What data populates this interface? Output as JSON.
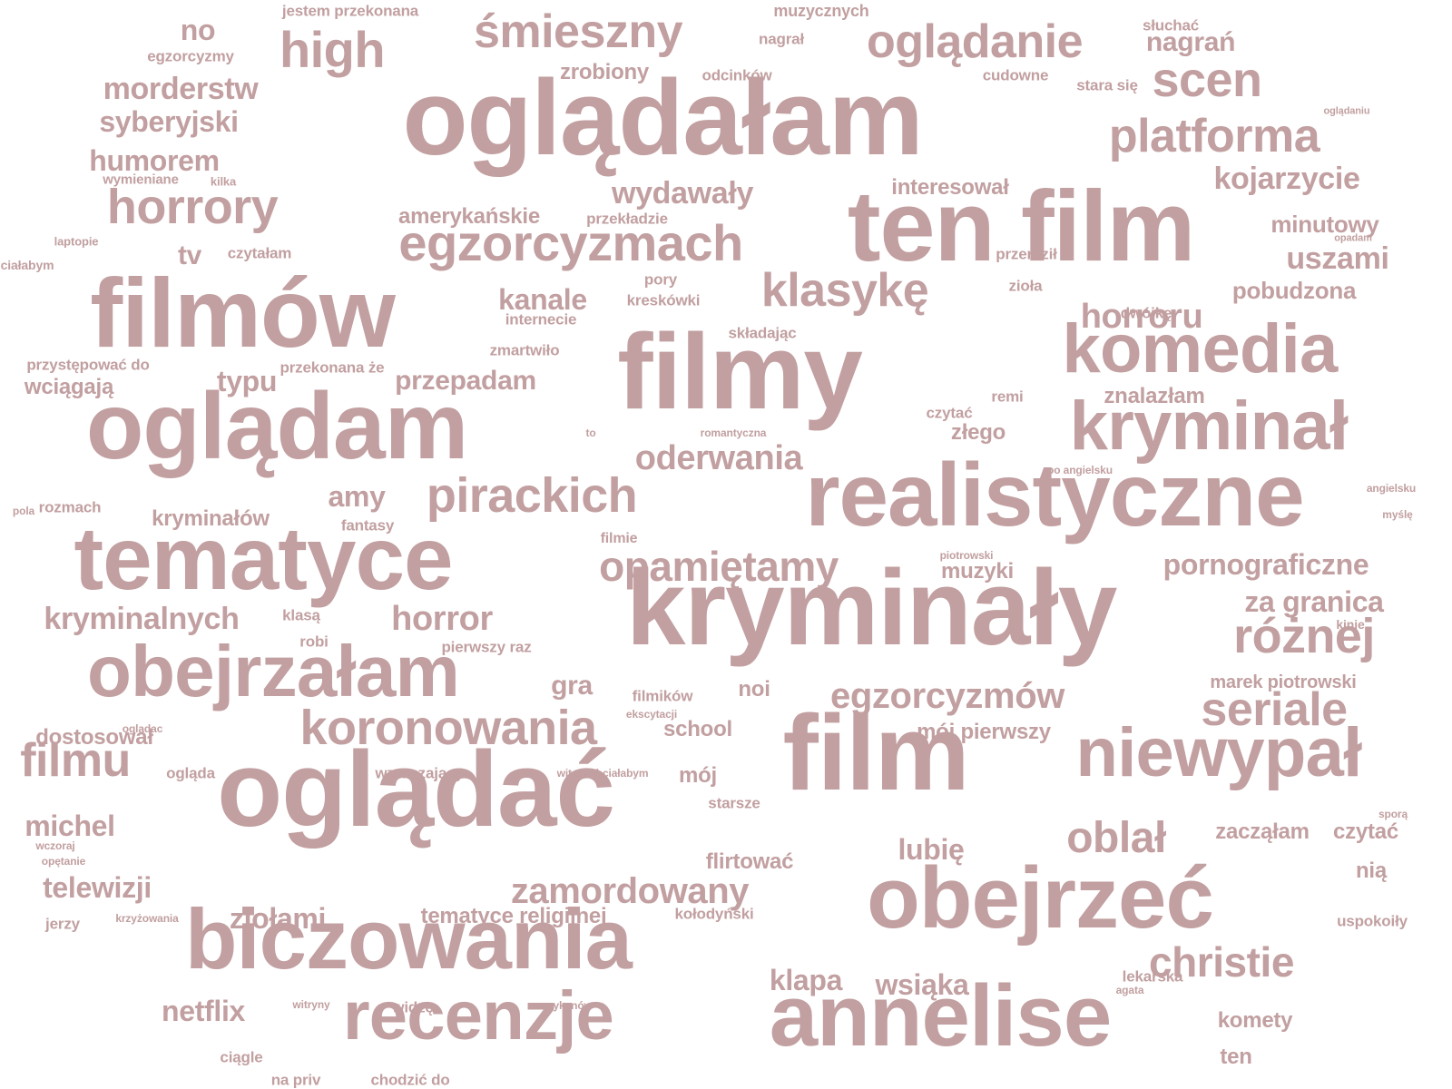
{
  "color": "#c29fa0",
  "background": "#ffffff",
  "words": [
    {
      "text": "oglądałam",
      "weight": 1.0
    },
    {
      "text": "filmy",
      "weight": 1.0
    },
    {
      "text": "kryminały",
      "weight": 1.0
    },
    {
      "text": "film",
      "weight": 1.0
    },
    {
      "text": "oglądać",
      "weight": 1.0
    },
    {
      "text": "ten film",
      "weight": 0.98
    },
    {
      "text": "filmów",
      "weight": 0.98
    },
    {
      "text": "oglądam",
      "weight": 0.95
    },
    {
      "text": "realistyczne",
      "weight": 0.92
    },
    {
      "text": "tematyce",
      "weight": 0.92
    },
    {
      "text": "obejrzeć",
      "weight": 0.9
    },
    {
      "text": "annelise",
      "weight": 0.88
    },
    {
      "text": "biczowania",
      "weight": 0.85
    },
    {
      "text": "obejrzałam",
      "weight": 0.78
    },
    {
      "text": "komedia",
      "weight": 0.68
    },
    {
      "text": "kryminał",
      "weight": 0.66
    },
    {
      "text": "niewypał",
      "weight": 0.68
    },
    {
      "text": "recenzje",
      "weight": 0.68
    },
    {
      "text": "egzorcyzmach",
      "weight": 0.56
    },
    {
      "text": "oglądanie",
      "weight": 0.5
    },
    {
      "text": "śmieszny",
      "weight": 0.5
    },
    {
      "text": "high",
      "weight": 0.52
    },
    {
      "text": "platforma",
      "weight": 0.52
    },
    {
      "text": "horrory",
      "weight": 0.5
    },
    {
      "text": "klasykę",
      "weight": 0.48
    },
    {
      "text": "pirackich",
      "weight": 0.48
    },
    {
      "text": "koronowania",
      "weight": 0.48
    },
    {
      "text": "scen",
      "weight": 0.5
    },
    {
      "text": "seriale",
      "weight": 0.5
    },
    {
      "text": "różnej",
      "weight": 0.48
    },
    {
      "text": "christie",
      "weight": 0.44
    },
    {
      "text": "filmu",
      "weight": 0.46
    },
    {
      "text": "oblał",
      "weight": 0.44
    },
    {
      "text": "opamiętamy",
      "weight": 0.4
    },
    {
      "text": "egzorcyzmów",
      "weight": 0.38
    },
    {
      "text": "zamordowany",
      "weight": 0.34
    },
    {
      "text": "oderwania",
      "weight": 0.36
    },
    {
      "text": "horror",
      "weight": 0.34
    },
    {
      "text": "kryminalnych",
      "weight": 0.32
    },
    {
      "text": "horroru",
      "weight": 0.34
    },
    {
      "text": "pornograficzne",
      "weight": 0.32
    },
    {
      "text": "za granica",
      "weight": 0.32
    },
    {
      "text": "kojarzycie",
      "weight": 0.3
    },
    {
      "text": "uszami",
      "weight": 0.3
    },
    {
      "text": "wydawały",
      "weight": 0.3
    },
    {
      "text": "morderstw",
      "weight": 0.3
    },
    {
      "text": "syberyjski",
      "weight": 0.3
    },
    {
      "text": "humorem",
      "weight": 0.3
    },
    {
      "text": "michel",
      "weight": 0.3
    },
    {
      "text": "telewizji",
      "weight": 0.3
    },
    {
      "text": "netflix",
      "weight": 0.32
    },
    {
      "text": "ziołami",
      "weight": 0.3
    },
    {
      "text": "kanale",
      "weight": 0.3
    },
    {
      "text": "przepadam",
      "weight": 0.28
    },
    {
      "text": "typu",
      "weight": 0.3
    },
    {
      "text": "amy",
      "weight": 0.3
    },
    {
      "text": "wsiąka",
      "weight": 0.3
    },
    {
      "text": "klapa",
      "weight": 0.3
    },
    {
      "text": "lubię",
      "weight": 0.3
    },
    {
      "text": "nagrań",
      "weight": 0.28
    },
    {
      "text": "gra",
      "weight": 0.3
    },
    {
      "text": "no",
      "weight": 0.3
    },
    {
      "text": "tv",
      "weight": 0.28
    },
    {
      "text": "minutowy",
      "weight": 0.24
    },
    {
      "text": "pobudzona",
      "weight": 0.22
    },
    {
      "text": "znalazłam",
      "weight": 0.22
    },
    {
      "text": "złego",
      "weight": 0.22
    },
    {
      "text": "muzyki",
      "weight": 0.22
    },
    {
      "text": "flirtować",
      "weight": 0.22
    },
    {
      "text": "tematyce religijnej",
      "weight": 0.22
    },
    {
      "text": "mój pierwszy",
      "weight": 0.22
    },
    {
      "text": "school",
      "weight": 0.22
    },
    {
      "text": "zacząłam",
      "weight": 0.22
    },
    {
      "text": "czytać",
      "weight": 0.22
    },
    {
      "text": "komety",
      "weight": 0.22
    },
    {
      "text": "ten",
      "weight": 0.22
    },
    {
      "text": "nią",
      "weight": 0.22
    },
    {
      "text": "noi",
      "weight": 0.22
    },
    {
      "text": "mój",
      "weight": 0.22
    },
    {
      "text": "dostosował",
      "weight": 0.22
    },
    {
      "text": "kryminałów",
      "weight": 0.22
    },
    {
      "text": "wciągają",
      "weight": 0.22
    },
    {
      "text": "zrobiony",
      "weight": 0.22
    },
    {
      "text": "interesował",
      "weight": 0.2
    },
    {
      "text": "amerykańskie",
      "weight": 0.2
    },
    {
      "text": "marek piotrowski",
      "weight": 0.18
    },
    {
      "text": "muzycznych",
      "weight": 0.17
    },
    {
      "text": "jestem przekonana",
      "weight": 0.15
    },
    {
      "text": "egzorcyzmy",
      "weight": 0.15
    },
    {
      "text": "odcinków",
      "weight": 0.15
    },
    {
      "text": "cudowne",
      "weight": 0.15
    },
    {
      "text": "stara się",
      "weight": 0.15
    },
    {
      "text": "słuchać",
      "weight": 0.15
    },
    {
      "text": "nagrał",
      "weight": 0.15
    },
    {
      "text": "pory",
      "weight": 0.15
    },
    {
      "text": "kreskówki",
      "weight": 0.15
    },
    {
      "text": "internecie",
      "weight": 0.15
    },
    {
      "text": "składając",
      "weight": 0.15
    },
    {
      "text": "zmartwiło",
      "weight": 0.15
    },
    {
      "text": "przekładzie",
      "weight": 0.15
    },
    {
      "text": "czytałam",
      "weight": 0.15
    },
    {
      "text": "przeraził",
      "weight": 0.15
    },
    {
      "text": "zioła",
      "weight": 0.15
    },
    {
      "text": "dwójkę",
      "weight": 0.15
    },
    {
      "text": "przystępować do",
      "weight": 0.15
    },
    {
      "text": "przekonana że",
      "weight": 0.15
    },
    {
      "text": "czytać",
      "weight": 0.15
    },
    {
      "text": "remi",
      "weight": 0.15
    },
    {
      "text": "fantasy",
      "weight": 0.15
    },
    {
      "text": "rozmach",
      "weight": 0.15
    },
    {
      "text": "klasą",
      "weight": 0.15
    },
    {
      "text": "robi",
      "weight": 0.15
    },
    {
      "text": "pierwszy raz",
      "weight": 0.15
    },
    {
      "text": "filmików",
      "weight": 0.15
    },
    {
      "text": "starsze",
      "weight": 0.15
    },
    {
      "text": "ogląda",
      "weight": 0.15
    },
    {
      "text": "wzruszający",
      "weight": 0.15
    },
    {
      "text": "kołodyński",
      "weight": 0.15
    },
    {
      "text": "widzę",
      "weight": 0.15
    },
    {
      "text": "lekarska",
      "weight": 0.15
    },
    {
      "text": "ciągle",
      "weight": 0.15
    },
    {
      "text": "na priv",
      "weight": 0.15
    },
    {
      "text": "chodzić do",
      "weight": 0.15
    },
    {
      "text": "uspokoiły",
      "weight": 0.15
    },
    {
      "text": "jerzy",
      "weight": 0.15
    },
    {
      "text": "filmie",
      "weight": 0.15
    },
    {
      "text": "wymieniane",
      "weight": 0.14
    },
    {
      "text": "kilka",
      "weight": 0.12
    },
    {
      "text": "laptopie",
      "weight": 0.1
    },
    {
      "text": "chciałabym",
      "weight": 0.1
    },
    {
      "text": "to",
      "weight": 0.13
    },
    {
      "text": "romantyczna",
      "weight": 0.1
    },
    {
      "text": "po angielsku",
      "weight": 0.1
    },
    {
      "text": "piotrowski",
      "weight": 0.1
    },
    {
      "text": "angielsku",
      "weight": 0.1
    },
    {
      "text": "myślę",
      "weight": 0.1
    },
    {
      "text": "pola",
      "weight": 0.1
    },
    {
      "text": "kinie",
      "weight": 0.1
    },
    {
      "text": "opadam",
      "weight": 0.12
    },
    {
      "text": "oglądaniu",
      "weight": 0.1
    },
    {
      "text": "oglądac",
      "weight": 0.1
    },
    {
      "text": "witam chciałabym",
      "weight": 0.1
    },
    {
      "text": "ekscytacji",
      "weight": 0.1
    },
    {
      "text": "wczoraj",
      "weight": 0.1
    },
    {
      "text": "opętanie",
      "weight": 0.1
    },
    {
      "text": "krzyżowania",
      "weight": 0.1
    },
    {
      "text": "witryny",
      "weight": 0.1
    },
    {
      "text": "amerykanów",
      "weight": 0.1
    },
    {
      "text": "agata",
      "weight": 0.1
    },
    {
      "text": "sporą",
      "weight": 0.1
    },
    {
      "text": "standardem",
      "weight": 0.1
    }
  ]
}
